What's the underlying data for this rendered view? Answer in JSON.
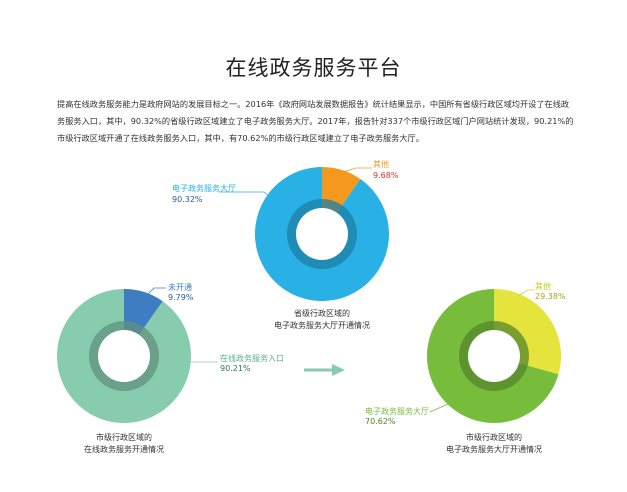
{
  "title": "在线政务服务平台",
  "intro": "提高在线政务服务能力是政府网站的发展目标之一。2016年《政府网站发展数据报告》统计结果显示，中国所有省级行政区域均开设了在线政务服务入口，其中，90.32%的省级行政区域建立了电子政务服务大厅。2017年，报告针对337个市级行政区域门户网站统计发现，90.21%的市级行政区域开通了在线政务服务入口，其中，有70.62%的市级行政区域建立了电子政务服务大厅。",
  "colors": {
    "blue": "#29b0e4",
    "orange": "#f39a1e",
    "mint": "#88ccb0",
    "darkblue": "#3e7dc2",
    "green": "#78bc3c",
    "yellow": "#e4e43c",
    "arrow": "#88ccb0"
  },
  "chart_data": [
    {
      "type": "pie",
      "caption_lines": [
        "省级行政区域的",
        "电子政务服务大厅开通情况"
      ],
      "slices": [
        {
          "label": "电子政务服务大厅",
          "value_label": "90.32%",
          "value": 90.32,
          "color": "#29b0e4"
        },
        {
          "label": "其他",
          "value_label": "9.68%",
          "value": 9.68,
          "color": "#f39a1e"
        }
      ]
    },
    {
      "type": "pie",
      "caption_lines": [
        "市级行政区域的",
        "在线政务服务开通情况"
      ],
      "slices": [
        {
          "label": "在线政务服务入口",
          "value_label": "90.21%",
          "value": 90.21,
          "color": "#88ccb0"
        },
        {
          "label": "未开通",
          "value_label": "9.79%",
          "value": 9.79,
          "color": "#3e7dc2"
        }
      ]
    },
    {
      "type": "pie",
      "caption_lines": [
        "市级行政区域的",
        "电子政务服务大厅开通情况"
      ],
      "slices": [
        {
          "label": "电子政务服务大厅",
          "value_label": "70.62%",
          "value": 70.62,
          "color": "#78bc3c"
        },
        {
          "label": "其他",
          "value_label": "29.38%",
          "value": 29.38,
          "color": "#e4e43c"
        }
      ]
    }
  ]
}
